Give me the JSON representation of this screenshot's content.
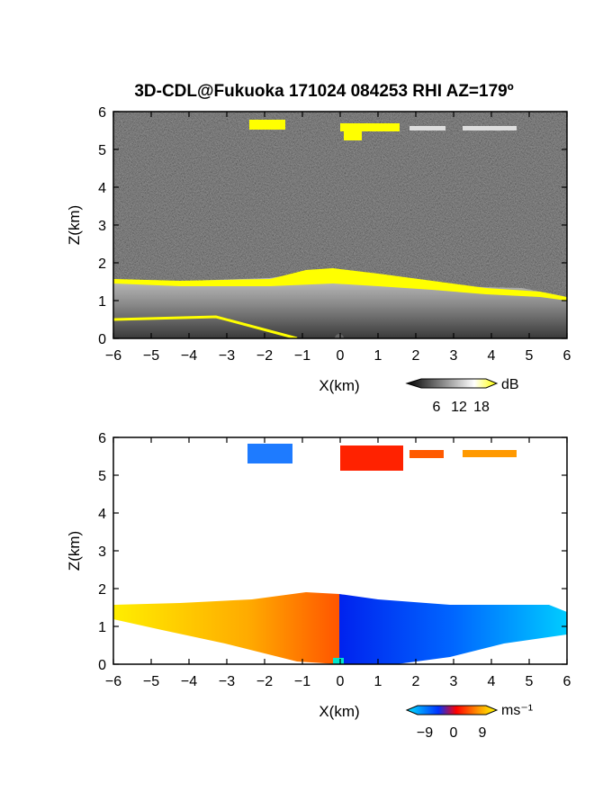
{
  "title": "3D-CDL@Fukuoka 171024 084253 RHI AZ=179º",
  "chart_data": [
    {
      "type": "heatmap",
      "panel": "reflectivity",
      "xlabel": "X(km)",
      "ylabel": "Z(km)",
      "xlim": [
        -6,
        6
      ],
      "ylim": [
        0,
        6
      ],
      "xticks": [
        -6,
        -5,
        -4,
        -3,
        -2,
        -1,
        0,
        1,
        2,
        3,
        4,
        5,
        6
      ],
      "yticks": [
        0,
        1,
        2,
        3,
        4,
        5,
        6
      ],
      "colorbar": {
        "unit": "dB",
        "ticks": [
          "6",
          "12",
          "18"
        ],
        "range": [
          0,
          21
        ],
        "colors": [
          "#000000",
          "#ffffff",
          "#ffff00"
        ]
      },
      "features": [
        {
          "kind": "boundary-layer",
          "x_range": [
            -6,
            6
          ],
          "top_km_at_x": [
            [
              -6,
              1.5
            ],
            [
              -3,
              1.55
            ],
            [
              -1,
              1.75
            ],
            [
              1,
              1.6
            ],
            [
              3,
              1.35
            ],
            [
              5,
              1.3
            ],
            [
              6,
              1.1
            ]
          ]
        },
        {
          "kind": "cloud-layer",
          "x_range": [
            -2.3,
            -1.5
          ],
          "z_range": [
            5.4,
            5.75
          ]
        },
        {
          "kind": "cloud-layer",
          "x_range": [
            0.1,
            1.6
          ],
          "z_range": [
            5.35,
            5.65
          ]
        },
        {
          "kind": "cloud-layer",
          "x_range": [
            1.8,
            2.8
          ],
          "z_range": [
            5.5,
            5.6
          ]
        },
        {
          "kind": "cloud-layer",
          "x_range": [
            3.3,
            4.8
          ],
          "z_range": [
            5.5,
            5.6
          ]
        }
      ]
    },
    {
      "type": "heatmap",
      "panel": "doppler-velocity",
      "xlabel": "X(km)",
      "ylabel": "Z(km)",
      "xlim": [
        -6,
        6
      ],
      "ylim": [
        0,
        6
      ],
      "xticks": [
        -6,
        -5,
        -4,
        -3,
        -2,
        -1,
        0,
        1,
        2,
        3,
        4,
        5,
        6
      ],
      "yticks": [
        0,
        1,
        2,
        3,
        4,
        5,
        6
      ],
      "colorbar": {
        "unit": "ms⁻¹",
        "ticks": [
          "−9",
          "0",
          "9"
        ],
        "range": [
          -12,
          12
        ],
        "colors": [
          "#00e5ff",
          "#0033ff",
          "#ff0000",
          "#ff9900",
          "#ffff00"
        ]
      },
      "features": [
        {
          "kind": "boundary-layer",
          "x_range": [
            -6,
            0
          ],
          "velocity_ms": 8
        },
        {
          "kind": "boundary-layer",
          "x_range": [
            0,
            6
          ],
          "velocity_ms": -8
        },
        {
          "kind": "cloud-layer",
          "x_range": [
            -2.4,
            -1.3
          ],
          "velocity_ms": -6
        },
        {
          "kind": "cloud-layer",
          "x_range": [
            0.3,
            1.7
          ],
          "velocity_ms": 2
        },
        {
          "kind": "cloud-layer",
          "x_range": [
            1.9,
            2.7
          ],
          "velocity_ms": 5
        },
        {
          "kind": "cloud-layer",
          "x_range": [
            3.3,
            4.8
          ],
          "velocity_ms": 7
        }
      ]
    }
  ]
}
